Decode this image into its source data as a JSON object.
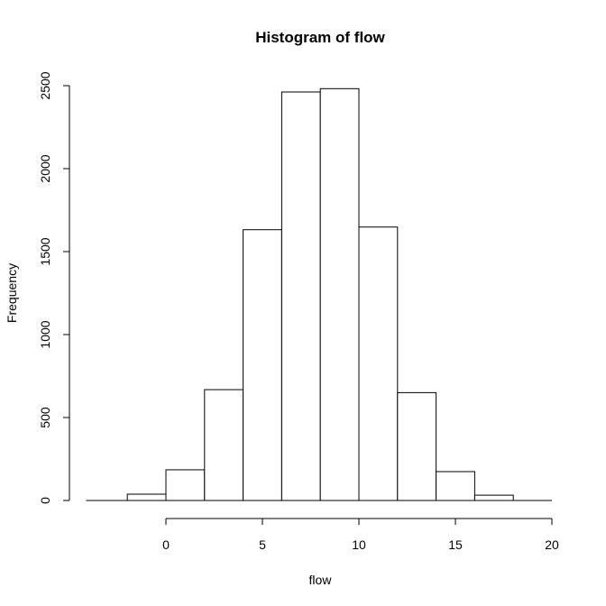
{
  "chart_data": {
    "type": "bar",
    "title": "Histogram of flow",
    "xlabel": "flow",
    "ylabel": "Frequency",
    "bins": [
      {
        "from": -2,
        "to": 0,
        "count": 38
      },
      {
        "from": 0,
        "to": 2,
        "count": 185
      },
      {
        "from": 2,
        "to": 4,
        "count": 668
      },
      {
        "from": 4,
        "to": 6,
        "count": 1632
      },
      {
        "from": 6,
        "to": 8,
        "count": 2462
      },
      {
        "from": 8,
        "to": 10,
        "count": 2482
      },
      {
        "from": 10,
        "to": 12,
        "count": 1648
      },
      {
        "from": 12,
        "to": 14,
        "count": 650
      },
      {
        "from": 14,
        "to": 16,
        "count": 174
      },
      {
        "from": 16,
        "to": 18,
        "count": 32
      }
    ],
    "xticks": [
      0,
      5,
      10,
      15,
      20
    ],
    "yticks": [
      0,
      500,
      1000,
      1500,
      2000,
      2500
    ],
    "xlim": [
      -4,
      20
    ],
    "ylim": [
      0,
      2500
    ],
    "grid": false,
    "legend": "none"
  }
}
